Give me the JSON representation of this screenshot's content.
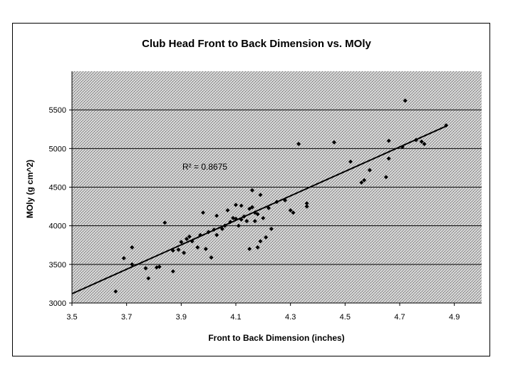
{
  "chart_data": {
    "type": "scatter",
    "title": "Club Head Front to Back Dimension vs. MOly",
    "xlabel": "Front to Back Dimension (inches)",
    "ylabel": "MOly (g cm^2)",
    "xlim": [
      3.5,
      5.0
    ],
    "ylim": [
      3000,
      6000
    ],
    "x_ticks": [
      "3.5",
      "3.7",
      "3.9",
      "4.1",
      "4.3",
      "4.5",
      "4.7",
      "4.9"
    ],
    "y_ticks": [
      "3000",
      "3500",
      "4000",
      "4500",
      "5000",
      "5500"
    ],
    "grid": "horizontal",
    "legend": "none",
    "annotation": "R² = 0.8675",
    "trendline": {
      "type": "linear",
      "x": [
        3.5,
        4.87
      ],
      "y": [
        3120,
        5290
      ]
    },
    "points": [
      {
        "x": 3.66,
        "y": 3150
      },
      {
        "x": 3.69,
        "y": 3580
      },
      {
        "x": 3.72,
        "y": 3720
      },
      {
        "x": 3.72,
        "y": 3500
      },
      {
        "x": 3.77,
        "y": 3450
      },
      {
        "x": 3.78,
        "y": 3320
      },
      {
        "x": 3.81,
        "y": 3460
      },
      {
        "x": 3.82,
        "y": 3470
      },
      {
        "x": 3.84,
        "y": 4040
      },
      {
        "x": 3.87,
        "y": 3680
      },
      {
        "x": 3.87,
        "y": 3410
      },
      {
        "x": 3.89,
        "y": 3690
      },
      {
        "x": 3.9,
        "y": 3790
      },
      {
        "x": 3.91,
        "y": 3650
      },
      {
        "x": 3.92,
        "y": 3830
      },
      {
        "x": 3.93,
        "y": 3860
      },
      {
        "x": 3.94,
        "y": 3800
      },
      {
        "x": 3.96,
        "y": 3720
      },
      {
        "x": 3.97,
        "y": 3880
      },
      {
        "x": 3.98,
        "y": 4170
      },
      {
        "x": 3.99,
        "y": 3700
      },
      {
        "x": 4.0,
        "y": 3920
      },
      {
        "x": 4.01,
        "y": 3590
      },
      {
        "x": 4.02,
        "y": 3950
      },
      {
        "x": 4.03,
        "y": 3880
      },
      {
        "x": 4.03,
        "y": 4130
      },
      {
        "x": 4.05,
        "y": 3960
      },
      {
        "x": 4.06,
        "y": 4000
      },
      {
        "x": 4.07,
        "y": 4200
      },
      {
        "x": 4.08,
        "y": 4050
      },
      {
        "x": 4.09,
        "y": 4100
      },
      {
        "x": 4.1,
        "y": 4270
      },
      {
        "x": 4.1,
        "y": 4090
      },
      {
        "x": 4.11,
        "y": 4000
      },
      {
        "x": 4.12,
        "y": 4260
      },
      {
        "x": 4.12,
        "y": 4080
      },
      {
        "x": 4.13,
        "y": 4120
      },
      {
        "x": 4.14,
        "y": 4060
      },
      {
        "x": 4.15,
        "y": 4220
      },
      {
        "x": 4.15,
        "y": 3700
      },
      {
        "x": 4.16,
        "y": 4460
      },
      {
        "x": 4.16,
        "y": 4240
      },
      {
        "x": 4.17,
        "y": 4170
      },
      {
        "x": 4.17,
        "y": 4060
      },
      {
        "x": 4.18,
        "y": 4150
      },
      {
        "x": 4.18,
        "y": 3720
      },
      {
        "x": 4.19,
        "y": 4400
      },
      {
        "x": 4.19,
        "y": 3800
      },
      {
        "x": 4.2,
        "y": 4100
      },
      {
        "x": 4.21,
        "y": 3850
      },
      {
        "x": 4.22,
        "y": 4230
      },
      {
        "x": 4.23,
        "y": 3960
      },
      {
        "x": 4.25,
        "y": 4310
      },
      {
        "x": 4.28,
        "y": 4330
      },
      {
        "x": 4.3,
        "y": 4200
      },
      {
        "x": 4.31,
        "y": 4170
      },
      {
        "x": 4.33,
        "y": 5060
      },
      {
        "x": 4.36,
        "y": 4290
      },
      {
        "x": 4.36,
        "y": 4250
      },
      {
        "x": 4.46,
        "y": 5080
      },
      {
        "x": 4.52,
        "y": 4830
      },
      {
        "x": 4.56,
        "y": 4560
      },
      {
        "x": 4.57,
        "y": 4590
      },
      {
        "x": 4.59,
        "y": 4720
      },
      {
        "x": 4.65,
        "y": 4630
      },
      {
        "x": 4.66,
        "y": 4870
      },
      {
        "x": 4.66,
        "y": 5100
      },
      {
        "x": 4.71,
        "y": 5020
      },
      {
        "x": 4.72,
        "y": 5620
      },
      {
        "x": 4.76,
        "y": 5110
      },
      {
        "x": 4.78,
        "y": 5090
      },
      {
        "x": 4.79,
        "y": 5060
      },
      {
        "x": 4.87,
        "y": 5300
      }
    ]
  }
}
